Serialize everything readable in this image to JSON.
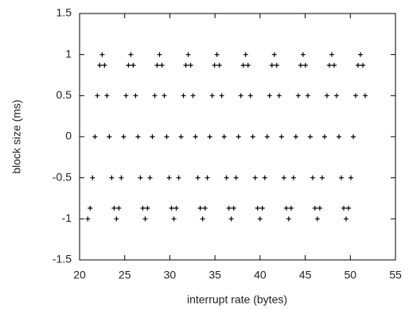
{
  "chart_data": {
    "type": "scatter",
    "xlabel": "interrupt rate (bytes)",
    "ylabel": "block size (ms)",
    "xlim": [
      20,
      55
    ],
    "xticks": [
      20,
      25,
      30,
      35,
      40,
      45,
      50,
      55
    ],
    "ylim": [
      -1.5,
      1.5
    ],
    "yticks": [
      -1.5,
      -1,
      -0.5,
      0,
      0.5,
      1,
      1.5
    ],
    "color": "#000000",
    "marker": "+",
    "x": [
      20.91,
      21.175,
      21.44,
      21.705,
      21.97,
      22.235,
      22.5,
      22.765,
      23.03,
      23.295,
      23.56,
      23.825,
      24.09,
      24.355,
      24.62,
      24.885,
      25.15,
      25.415,
      25.68,
      25.945,
      26.21,
      26.475,
      26.74,
      27.005,
      27.27,
      27.535,
      27.8,
      28.065,
      28.33,
      28.595,
      28.86,
      29.125,
      29.39,
      29.655,
      29.92,
      30.185,
      30.45,
      30.715,
      30.98,
      31.245,
      31.51,
      31.775,
      32.04,
      32.305,
      32.57,
      32.835,
      33.1,
      33.365,
      33.63,
      33.895,
      34.16,
      34.425,
      34.69,
      34.955,
      35.22,
      35.485,
      35.75,
      36.015,
      36.28,
      36.545,
      36.81,
      37.075,
      37.34,
      37.605,
      37.87,
      38.135,
      38.4,
      38.665,
      38.93,
      39.195,
      39.46,
      39.725,
      39.99,
      40.255,
      40.52,
      40.785,
      41.05,
      41.315,
      41.58,
      41.845,
      42.11,
      42.375,
      42.64,
      42.905,
      43.17,
      43.435,
      43.7,
      43.965,
      44.23,
      44.495,
      44.76,
      45.025,
      45.29,
      45.555,
      45.82,
      46.085,
      46.35,
      46.615,
      46.88,
      47.145,
      47.41,
      47.675,
      47.94,
      48.205,
      48.47,
      48.735,
      49.0,
      49.265,
      49.53,
      49.795,
      50.06,
      50.325,
      50.59,
      50.855,
      51.12,
      51.385,
      51.65
    ],
    "y": [
      -1,
      -0.87,
      -0.5,
      0,
      0.5,
      0.87,
      1,
      0.87,
      0.5,
      0,
      -0.5,
      -0.87,
      -1,
      -0.87,
      -0.5,
      0,
      0.5,
      0.87,
      1,
      0.87,
      0.5,
      0,
      -0.5,
      -0.87,
      -1,
      -0.87,
      -0.5,
      0,
      0.5,
      0.87,
      1,
      0.87,
      0.5,
      0,
      -0.5,
      -0.87,
      -1,
      -0.87,
      -0.5,
      0,
      0.5,
      0.87,
      1,
      0.87,
      0.5,
      0,
      -0.5,
      -0.87,
      -1,
      -0.87,
      -0.5,
      0,
      0.5,
      0.87,
      1,
      0.87,
      0.5,
      0,
      -0.5,
      -0.87,
      -1,
      -0.87,
      -0.5,
      0,
      0.5,
      0.87,
      1,
      0.87,
      0.5,
      0,
      -0.5,
      -0.87,
      -1,
      -0.87,
      -0.5,
      0,
      0.5,
      0.87,
      1,
      0.87,
      0.5,
      0,
      -0.5,
      -0.87,
      -1,
      -0.87,
      -0.5,
      0,
      0.5,
      0.87,
      1,
      0.87,
      0.5,
      0,
      -0.5,
      -0.87,
      -1,
      -0.87,
      -0.5,
      0,
      0.5,
      0.87,
      1,
      0.87,
      0.5,
      0,
      -0.5,
      -0.87,
      -1,
      -0.87,
      -0.5,
      0,
      0.5,
      0.87,
      1,
      0.87,
      0.5
    ]
  }
}
